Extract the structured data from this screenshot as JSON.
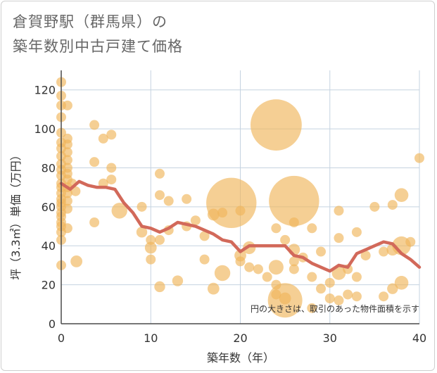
{
  "chart_data": {
    "type": "scatter",
    "title_line1": "倉賀野駅（群馬県）の",
    "title_line2": "築年数別中古戸建て価格",
    "xlabel": "築年数（年）",
    "ylabel": "坪（3.3㎡）単価（万円）",
    "xlim": [
      0,
      40
    ],
    "ylim": [
      0,
      130
    ],
    "x_ticks": [
      0,
      10,
      20,
      30,
      40
    ],
    "y_ticks": [
      0,
      20,
      40,
      60,
      80,
      100,
      120
    ],
    "note": "円の大きさは、取引のあった物件面積を示す",
    "colors": {
      "bubble": "#f0b55a",
      "line": "#d2695a",
      "grid": "#c5d3e0",
      "axis": "#4a4a4a"
    },
    "points": [
      {
        "x": 0,
        "y": 124,
        "s": 1
      },
      {
        "x": 0,
        "y": 117,
        "s": 1
      },
      {
        "x": 0,
        "y": 112,
        "s": 1
      },
      {
        "x": 0,
        "y": 106,
        "s": 1
      },
      {
        "x": 0,
        "y": 98,
        "s": 1
      },
      {
        "x": 0,
        "y": 93,
        "s": 1
      },
      {
        "x": 0,
        "y": 90,
        "s": 1
      },
      {
        "x": 0,
        "y": 86,
        "s": 1
      },
      {
        "x": 0,
        "y": 82,
        "s": 1
      },
      {
        "x": 0,
        "y": 79,
        "s": 1
      },
      {
        "x": 0,
        "y": 76,
        "s": 1
      },
      {
        "x": 0,
        "y": 72,
        "s": 1
      },
      {
        "x": 0,
        "y": 70,
        "s": 1
      },
      {
        "x": 0,
        "y": 67,
        "s": 1
      },
      {
        "x": 0,
        "y": 64,
        "s": 1
      },
      {
        "x": 0,
        "y": 62,
        "s": 1
      },
      {
        "x": 0,
        "y": 60,
        "s": 1
      },
      {
        "x": 0,
        "y": 57,
        "s": 1
      },
      {
        "x": 0,
        "y": 55,
        "s": 1
      },
      {
        "x": 0,
        "y": 52,
        "s": 1
      },
      {
        "x": 0,
        "y": 50,
        "s": 1
      },
      {
        "x": 0,
        "y": 47,
        "s": 1
      },
      {
        "x": 0,
        "y": 43,
        "s": 1
      },
      {
        "x": 0,
        "y": 30,
        "s": 1
      },
      {
        "x": 0.7,
        "y": 112,
        "s": 1
      },
      {
        "x": 0.7,
        "y": 95,
        "s": 1
      },
      {
        "x": 0.7,
        "y": 92,
        "s": 1
      },
      {
        "x": 0.7,
        "y": 88,
        "s": 1
      },
      {
        "x": 0.7,
        "y": 84,
        "s": 1
      },
      {
        "x": 0.7,
        "y": 80,
        "s": 1
      },
      {
        "x": 0.7,
        "y": 77,
        "s": 1
      },
      {
        "x": 0.7,
        "y": 74,
        "s": 1
      },
      {
        "x": 0.7,
        "y": 70,
        "s": 1
      },
      {
        "x": 0.7,
        "y": 67,
        "s": 1
      },
      {
        "x": 0.7,
        "y": 63,
        "s": 1
      },
      {
        "x": 0.7,
        "y": 59,
        "s": 1
      },
      {
        "x": 0.7,
        "y": 49,
        "s": 1
      },
      {
        "x": 1.2,
        "y": 72,
        "s": 1
      },
      {
        "x": 1.6,
        "y": 68,
        "s": 1
      },
      {
        "x": 1.7,
        "y": 32,
        "s": 1.2
      },
      {
        "x": 3.7,
        "y": 102,
        "s": 1
      },
      {
        "x": 3.7,
        "y": 83,
        "s": 1
      },
      {
        "x": 3.7,
        "y": 52,
        "s": 1
      },
      {
        "x": 4.7,
        "y": 95,
        "s": 1
      },
      {
        "x": 4.7,
        "y": 72,
        "s": 1
      },
      {
        "x": 5.6,
        "y": 97,
        "s": 1
      },
      {
        "x": 5.6,
        "y": 80,
        "s": 1
      },
      {
        "x": 5.6,
        "y": 74,
        "s": 1
      },
      {
        "x": 6.5,
        "y": 58,
        "s": 1.6
      },
      {
        "x": 9,
        "y": 60,
        "s": 1
      },
      {
        "x": 9,
        "y": 47,
        "s": 1.1
      },
      {
        "x": 10,
        "y": 43,
        "s": 1
      },
      {
        "x": 10,
        "y": 39,
        "s": 1.2
      },
      {
        "x": 10,
        "y": 33,
        "s": 1
      },
      {
        "x": 11,
        "y": 77,
        "s": 1
      },
      {
        "x": 11,
        "y": 66,
        "s": 1
      },
      {
        "x": 11,
        "y": 43,
        "s": 1
      },
      {
        "x": 11,
        "y": 19,
        "s": 1.1
      },
      {
        "x": 12,
        "y": 63,
        "s": 1
      },
      {
        "x": 12,
        "y": 48,
        "s": 1
      },
      {
        "x": 13,
        "y": 22,
        "s": 1.1
      },
      {
        "x": 14,
        "y": 64,
        "s": 1
      },
      {
        "x": 14,
        "y": 50,
        "s": 1
      },
      {
        "x": 15,
        "y": 53,
        "s": 1
      },
      {
        "x": 16,
        "y": 45,
        "s": 1
      },
      {
        "x": 16,
        "y": 33,
        "s": 1
      },
      {
        "x": 17,
        "y": 56,
        "s": 1.2
      },
      {
        "x": 17,
        "y": 18,
        "s": 1.2
      },
      {
        "x": 18,
        "y": 57,
        "s": 1
      },
      {
        "x": 18,
        "y": 26,
        "s": 1.6
      },
      {
        "x": 19,
        "y": 62,
        "s": 5.1
      },
      {
        "x": 20,
        "y": 58,
        "s": 1
      },
      {
        "x": 20,
        "y": 35,
        "s": 1.2
      },
      {
        "x": 20,
        "y": 32,
        "s": 1
      },
      {
        "x": 21,
        "y": 39,
        "s": 1.3
      },
      {
        "x": 21,
        "y": 29,
        "s": 1
      },
      {
        "x": 22,
        "y": 28,
        "s": 1
      },
      {
        "x": 23,
        "y": 24,
        "s": 1
      },
      {
        "x": 24,
        "y": 102,
        "s": 5.2
      },
      {
        "x": 24,
        "y": 49,
        "s": 1
      },
      {
        "x": 24,
        "y": 29,
        "s": 1.5
      },
      {
        "x": 24,
        "y": 20,
        "s": 1
      },
      {
        "x": 24,
        "y": 15,
        "s": 1
      },
      {
        "x": 25,
        "y": 43,
        "s": 1
      },
      {
        "x": 25,
        "y": 12,
        "s": 3.5
      },
      {
        "x": 25,
        "y": 13,
        "s": 1.2
      },
      {
        "x": 26,
        "y": 63,
        "s": 5.1
      },
      {
        "x": 26,
        "y": 52,
        "s": 1
      },
      {
        "x": 26,
        "y": 38,
        "s": 1.2
      },
      {
        "x": 26,
        "y": 32,
        "s": 1
      },
      {
        "x": 26,
        "y": 28,
        "s": 1
      },
      {
        "x": 27,
        "y": 34,
        "s": 1
      },
      {
        "x": 28,
        "y": 49,
        "s": 1
      },
      {
        "x": 28,
        "y": 24,
        "s": 1
      },
      {
        "x": 28,
        "y": 8,
        "s": 1
      },
      {
        "x": 29,
        "y": 37,
        "s": 1
      },
      {
        "x": 29,
        "y": 18,
        "s": 1
      },
      {
        "x": 30,
        "y": 21,
        "s": 1
      },
      {
        "x": 30,
        "y": 13,
        "s": 1
      },
      {
        "x": 31,
        "y": 58,
        "s": 1
      },
      {
        "x": 31,
        "y": 44,
        "s": 1
      },
      {
        "x": 31,
        "y": 26,
        "s": 1.4
      },
      {
        "x": 31,
        "y": 12,
        "s": 1
      },
      {
        "x": 32,
        "y": 28,
        "s": 1
      },
      {
        "x": 32,
        "y": 15,
        "s": 1
      },
      {
        "x": 33,
        "y": 47,
        "s": 1
      },
      {
        "x": 33,
        "y": 24,
        "s": 1
      },
      {
        "x": 33,
        "y": 14,
        "s": 1
      },
      {
        "x": 34,
        "y": 35,
        "s": 1
      },
      {
        "x": 35,
        "y": 60,
        "s": 1
      },
      {
        "x": 36,
        "y": 14,
        "s": 1
      },
      {
        "x": 36,
        "y": 37,
        "s": 1
      },
      {
        "x": 37,
        "y": 61,
        "s": 1
      },
      {
        "x": 37,
        "y": 38,
        "s": 1.2
      },
      {
        "x": 37,
        "y": 18,
        "s": 1.1
      },
      {
        "x": 38,
        "y": 66,
        "s": 1.4
      },
      {
        "x": 38,
        "y": 40,
        "s": 1.9
      },
      {
        "x": 38,
        "y": 21,
        "s": 1.4
      },
      {
        "x": 39,
        "y": 42,
        "s": 1
      },
      {
        "x": 40,
        "y": 85,
        "s": 1
      }
    ],
    "trend": {
      "x": [
        0,
        1,
        2,
        3,
        4,
        5,
        6,
        7,
        8,
        9,
        10,
        11,
        12,
        13,
        14,
        15,
        16,
        17,
        18,
        19,
        20,
        21,
        22,
        23,
        24,
        25,
        26,
        27,
        28,
        29,
        30,
        31,
        32,
        33,
        34,
        35,
        36,
        37,
        38,
        39,
        40
      ],
      "y": [
        72,
        69,
        73,
        71,
        70,
        70,
        69,
        62,
        57,
        50,
        49,
        47,
        49,
        52,
        51,
        50,
        48,
        46,
        43,
        42,
        37,
        40,
        40,
        40,
        40,
        40,
        35,
        34,
        31,
        29,
        27,
        30,
        29,
        36,
        38,
        40,
        42,
        41,
        36,
        33,
        29
      ]
    }
  }
}
